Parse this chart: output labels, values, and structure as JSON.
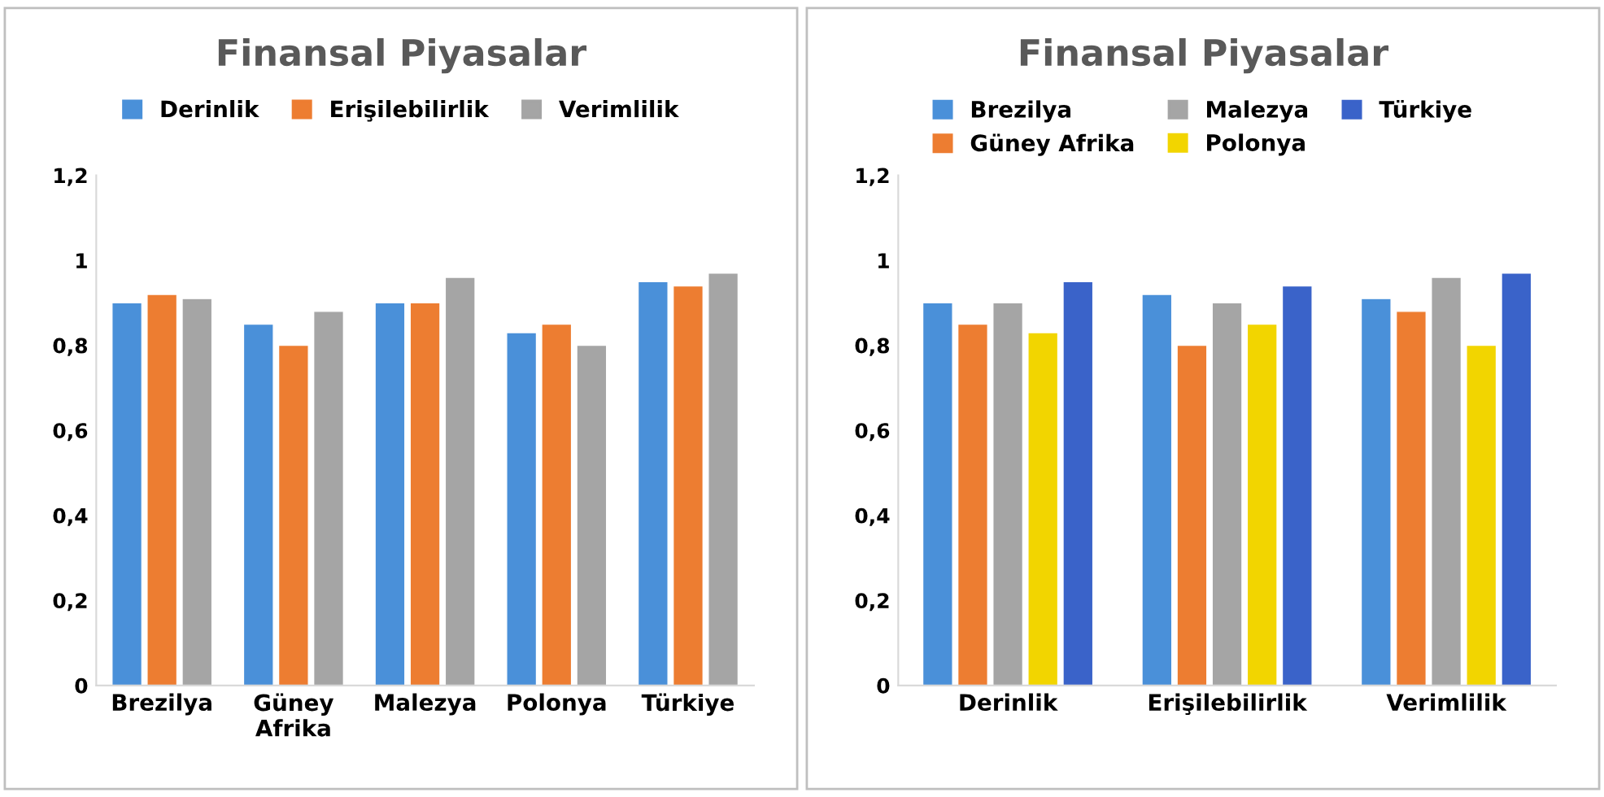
{
  "chart_data": [
    {
      "type": "bar",
      "title": "Finansal Piyasalar",
      "categories": [
        "Brezilya",
        "Güney\nAfrika",
        "Malezya",
        "Polonya",
        "Türkiye"
      ],
      "series": [
        {
          "name": "Derinlik",
          "color": "#4a90d9",
          "values": [
            0.9,
            0.85,
            0.9,
            0.83,
            0.95
          ]
        },
        {
          "name": "Erişilebilirlik",
          "color": "#ed7d31",
          "values": [
            0.92,
            0.8,
            0.9,
            0.85,
            0.94
          ]
        },
        {
          "name": "Verimlilik",
          "color": "#a5a5a5",
          "values": [
            0.91,
            0.88,
            0.96,
            0.8,
            0.97
          ]
        }
      ],
      "ylim": [
        0,
        1.2
      ],
      "yticks": [
        {
          "value": 0,
          "label": "0"
        },
        {
          "value": 0.2,
          "label": "0,2"
        },
        {
          "value": 0.4,
          "label": "0,4"
        },
        {
          "value": 0.6,
          "label": "0,6"
        },
        {
          "value": 0.8,
          "label": "0,8"
        },
        {
          "value": 1,
          "label": "1"
        },
        {
          "value": 1.2,
          "label": "1,2"
        }
      ],
      "grid": false,
      "legend": "top"
    },
    {
      "type": "bar",
      "title": "Finansal Piyasalar",
      "categories": [
        "Derinlik",
        "Erişilebilirlik",
        "Verimlilik"
      ],
      "series": [
        {
          "name": "Brezilya",
          "color": "#4a90d9",
          "values": [
            0.9,
            0.92,
            0.91
          ]
        },
        {
          "name": "Güney Afrika",
          "color": "#ed7d31",
          "values": [
            0.85,
            0.8,
            0.88
          ]
        },
        {
          "name": "Malezya",
          "color": "#a5a5a5",
          "values": [
            0.9,
            0.9,
            0.96
          ]
        },
        {
          "name": "Polonya",
          "color": "#f2d500",
          "values": [
            0.83,
            0.85,
            0.8
          ]
        },
        {
          "name": "Türkiye",
          "color": "#3a63c9",
          "values": [
            0.95,
            0.94,
            0.97
          ]
        }
      ],
      "ylim": [
        0,
        1.2
      ],
      "yticks": [
        {
          "value": 0,
          "label": "0"
        },
        {
          "value": 0.2,
          "label": "0,2"
        },
        {
          "value": 0.4,
          "label": "0,4"
        },
        {
          "value": 0.6,
          "label": "0,6"
        },
        {
          "value": 0.8,
          "label": "0,8"
        },
        {
          "value": 1,
          "label": "1"
        },
        {
          "value": 1.2,
          "label": "1,2"
        }
      ],
      "grid": false,
      "legend": "top"
    }
  ]
}
